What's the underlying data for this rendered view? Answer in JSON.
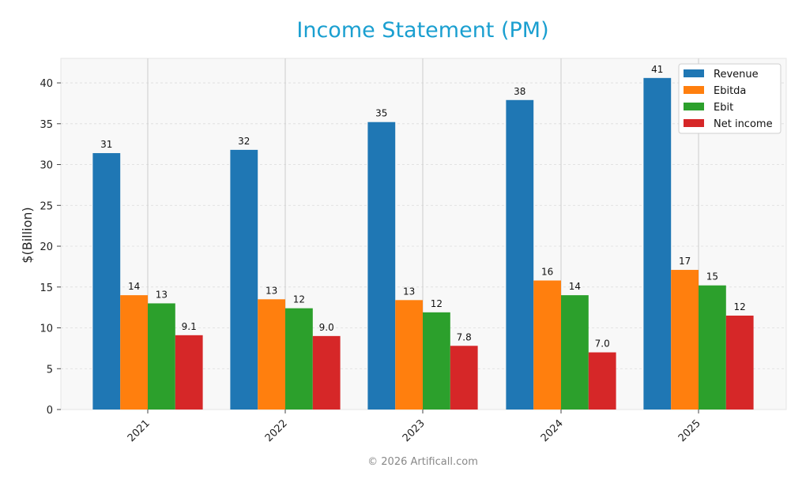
{
  "chart_data": {
    "type": "bar",
    "title": "Income Statement (PM)",
    "xlabel": "",
    "ylabel": "$(Billion)",
    "categories": [
      "2021",
      "2022",
      "2023",
      "2024",
      "2025"
    ],
    "series": [
      {
        "name": "Revenue",
        "color": "#1f77b4",
        "values": [
          31.4,
          31.8,
          35.2,
          37.9,
          40.6
        ],
        "labels": [
          "31",
          "32",
          "35",
          "38",
          "41"
        ]
      },
      {
        "name": "Ebitda",
        "color": "#ff7f0e",
        "values": [
          14.0,
          13.5,
          13.4,
          15.8,
          17.1
        ],
        "labels": [
          "14",
          "13",
          "13",
          "16",
          "17"
        ]
      },
      {
        "name": "Ebit",
        "color": "#2ca02c",
        "values": [
          13.0,
          12.4,
          11.9,
          14.0,
          15.2
        ],
        "labels": [
          "13",
          "12",
          "12",
          "14",
          "15"
        ]
      },
      {
        "name": "Net income",
        "color": "#d62728",
        "values": [
          9.1,
          9.0,
          7.8,
          7.0,
          11.5
        ],
        "labels": [
          "9.1",
          "9.0",
          "7.8",
          "7.0",
          "12"
        ]
      }
    ],
    "yticks": [
      "0",
      "5",
      "10",
      "15",
      "20",
      "25",
      "30",
      "35",
      "40"
    ],
    "ylim": [
      0,
      43
    ],
    "grid": true,
    "legend_position": "top-right",
    "title_color": "#1a9fd0"
  },
  "footer": {
    "copyright": "© 2026 Artificall.com"
  }
}
